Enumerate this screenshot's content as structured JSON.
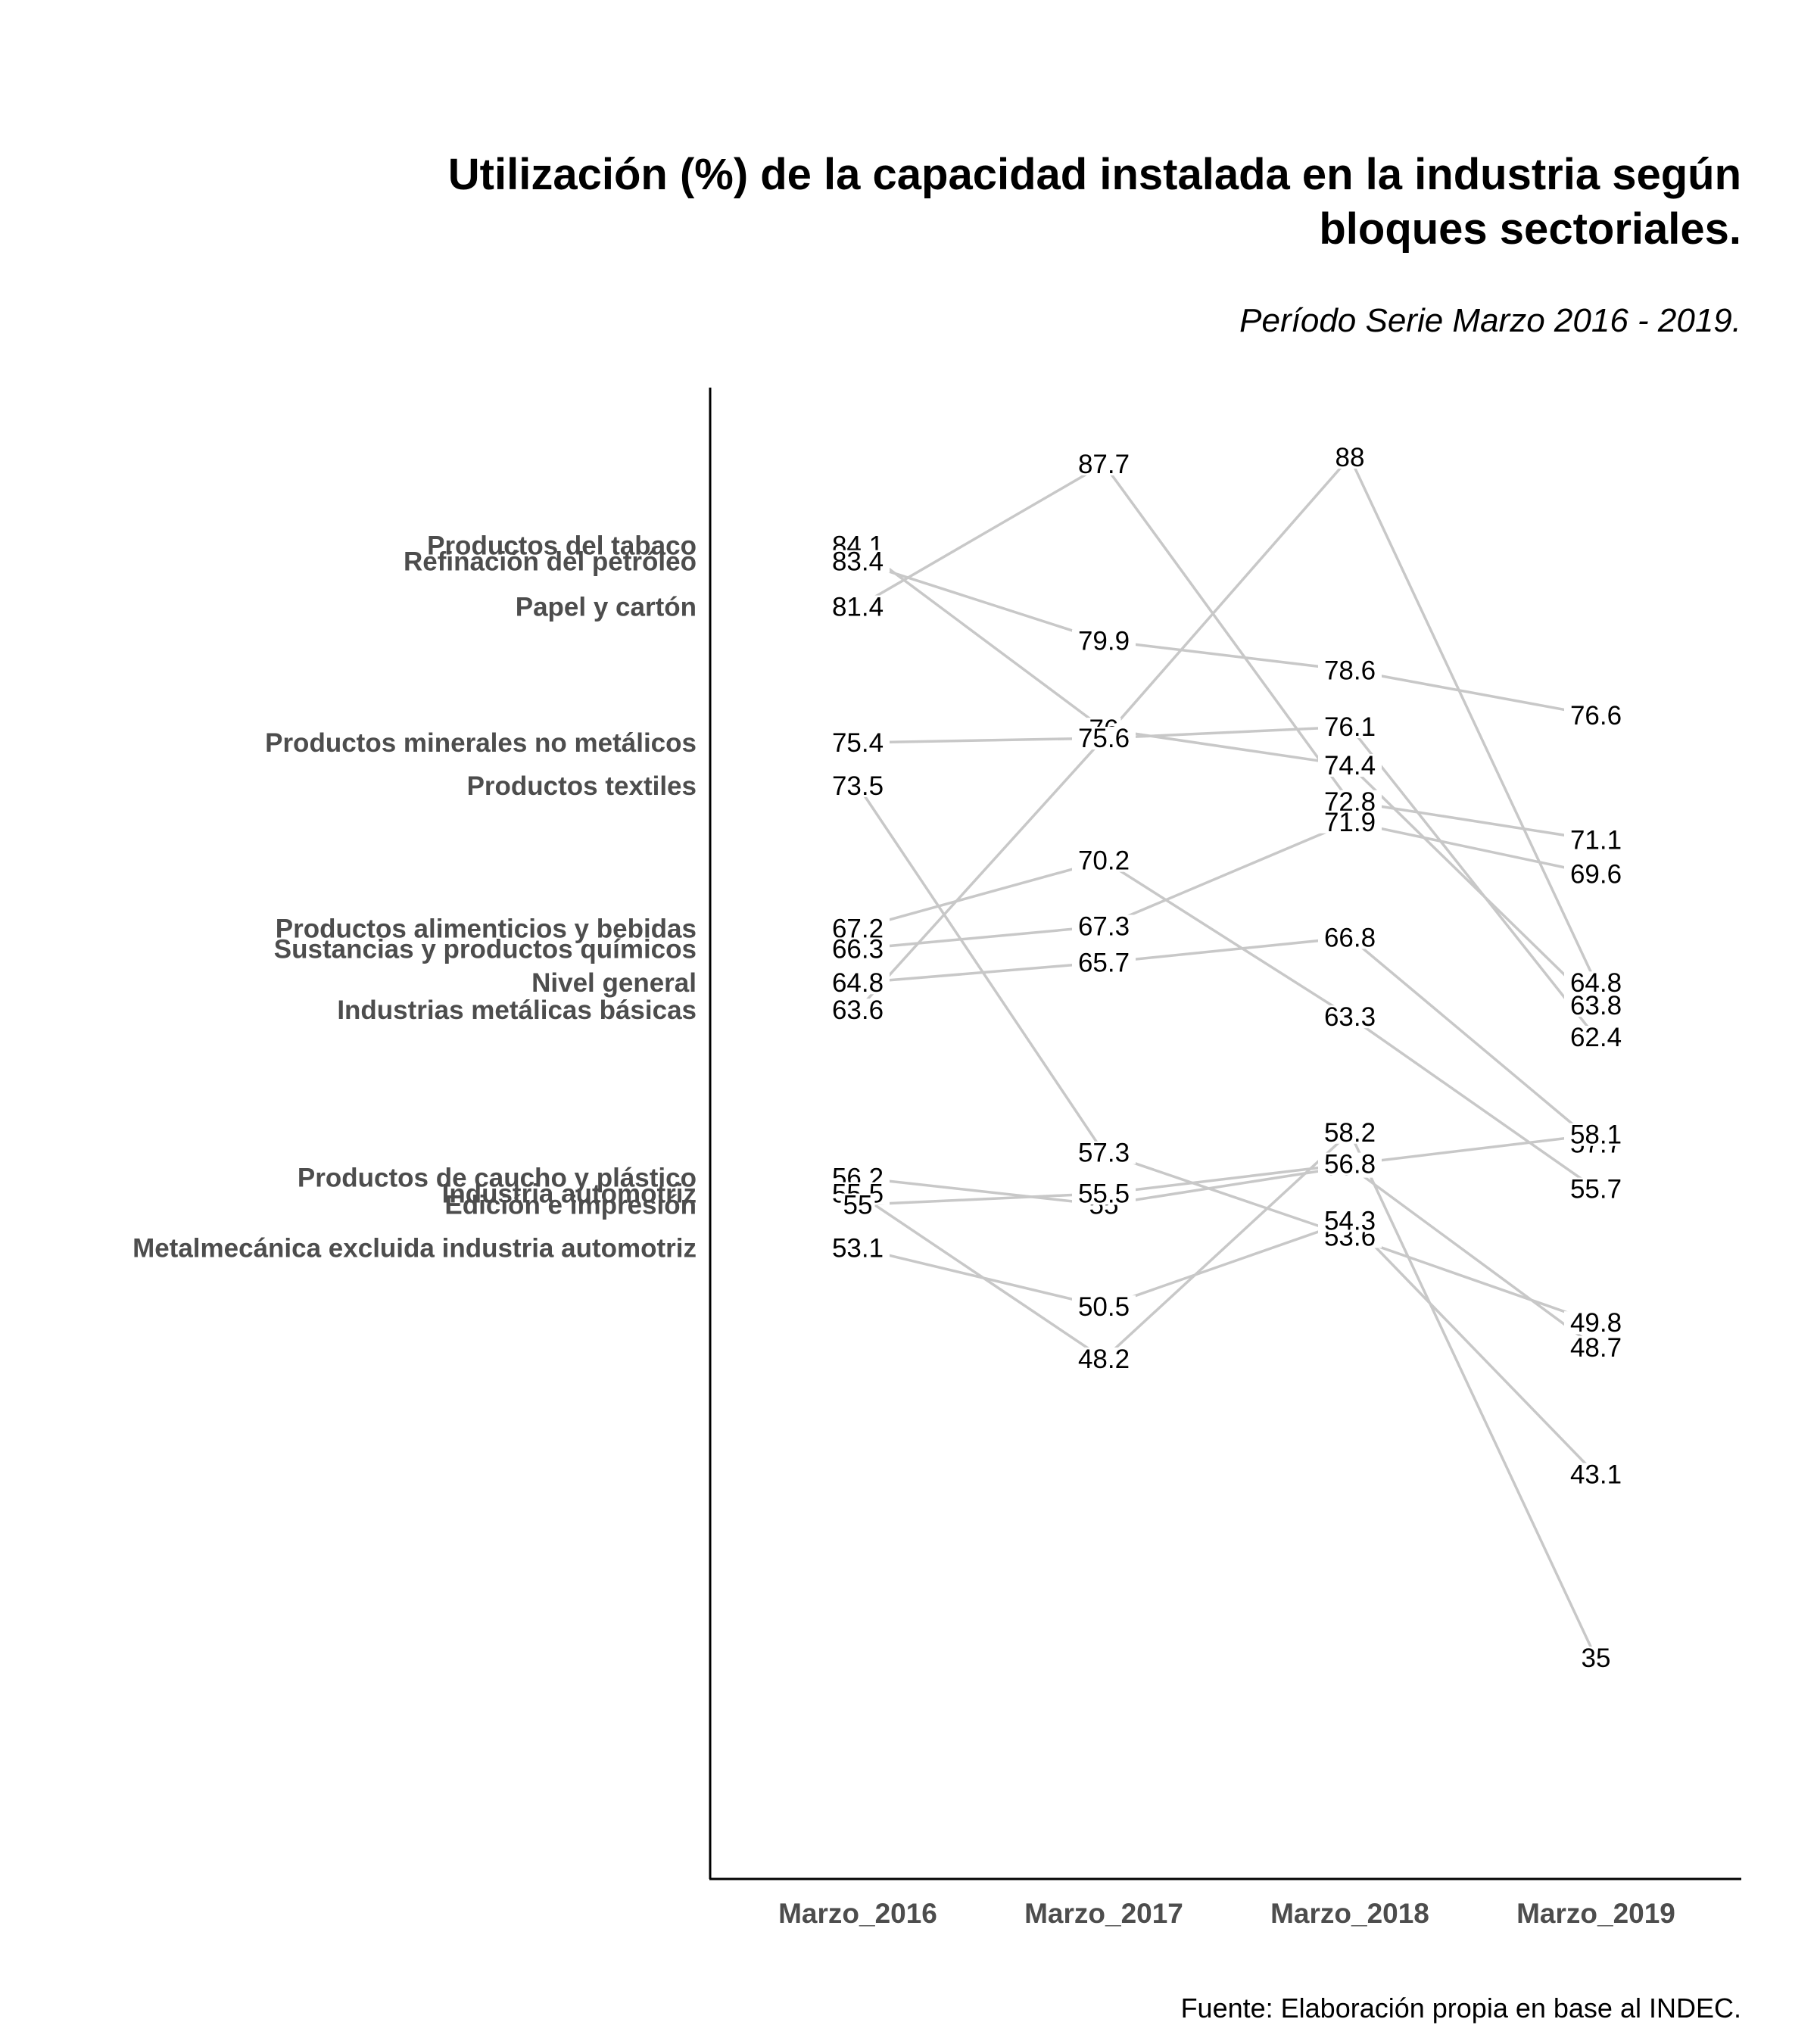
{
  "chart_data": {
    "type": "line",
    "subtype": "slopegraph",
    "title": "Utilización (%) de la capacidad instalada en la industria según bloques sectoriales.",
    "subtitle": "Período Serie Marzo 2016 - 2019.",
    "caption": "Fuente: Elaboración propia en base al INDEC.",
    "categories": [
      "Marzo_2016",
      "Marzo_2017",
      "Marzo_2018",
      "Marzo_2019"
    ],
    "series": [
      {
        "name": "Productos del tabaco",
        "values": [
          84.1,
          76,
          74.4,
          63.8
        ]
      },
      {
        "name": "Refinación del petróleo",
        "values": [
          83.4,
          79.9,
          78.6,
          76.6
        ]
      },
      {
        "name": "Papel y cartón",
        "values": [
          81.4,
          87.7,
          72.8,
          71.1
        ]
      },
      {
        "name": "Productos minerales no metálicos",
        "values": [
          75.4,
          75.6,
          76.1,
          62.4
        ]
      },
      {
        "name": "Productos textiles",
        "values": [
          73.5,
          57.3,
          53.6,
          49.8
        ]
      },
      {
        "name": "Productos alimenticios y bebidas",
        "values": [
          67.2,
          70.2,
          63.3,
          55.7
        ]
      },
      {
        "name": "Sustancias y productos químicos",
        "values": [
          66.3,
          67.3,
          71.9,
          69.6
        ]
      },
      {
        "name": "Nivel general",
        "values": [
          64.8,
          65.7,
          66.8,
          57.7
        ]
      },
      {
        "name": "Industrias metálicas básicas",
        "values": [
          63.6,
          75.6,
          88,
          64.8
        ]
      },
      {
        "name": "Productos de caucho y plástico",
        "values": [
          56.2,
          55,
          56.7,
          48.7
        ]
      },
      {
        "name": "Industria automotriz",
        "values": [
          55.5,
          48.2,
          58.2,
          35
        ]
      },
      {
        "name": "Edición e impresión",
        "values": [
          55,
          55.5,
          56.8,
          58.1
        ]
      },
      {
        "name": "Metalmecánica excluida industria automotriz",
        "values": [
          53.1,
          50.5,
          54.3,
          43.1
        ]
      }
    ],
    "ylim": [
      35,
      88
    ],
    "grid": false,
    "legend": "none"
  }
}
